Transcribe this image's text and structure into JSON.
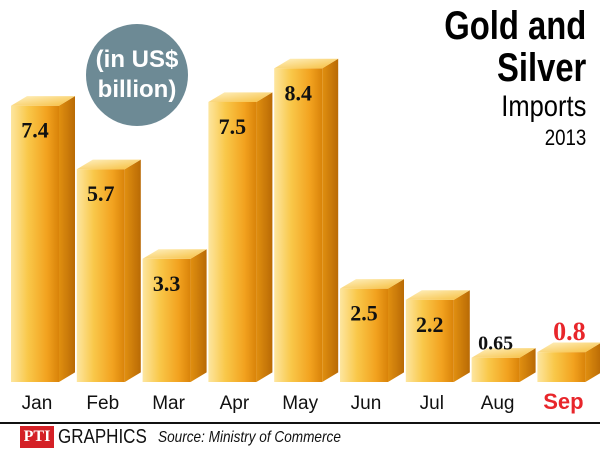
{
  "title": {
    "line1": "Gold and",
    "line2": "Silver",
    "line3": "Imports",
    "year": "2013"
  },
  "unit": {
    "line1": "(in US$",
    "line2": "billion)"
  },
  "footer": {
    "logo": "PTI",
    "brand": "GRAPHICS",
    "source": "Source: Ministry of Commerce"
  },
  "colors": {
    "bar_light": "#fde6a0",
    "bar_mid": "#f7b52d",
    "bar_dark": "#d98309",
    "highlight": "#e8262b",
    "unit_badge": "#6d8a95"
  },
  "chart_data": {
    "type": "bar",
    "categories": [
      "Jan",
      "Feb",
      "Mar",
      "Apr",
      "May",
      "Jun",
      "Jul",
      "Aug",
      "Sep"
    ],
    "values": [
      7.4,
      5.7,
      3.3,
      7.5,
      8.4,
      2.5,
      2.2,
      0.65,
      0.8
    ],
    "value_labels": [
      "7.4",
      "5.7",
      "3.3",
      "7.5",
      "8.4",
      "2.5",
      "2.2",
      "0.65",
      "0.8"
    ],
    "highlight_category": "Sep",
    "ylim": [
      0,
      9
    ],
    "grid": false,
    "legend": "none"
  }
}
